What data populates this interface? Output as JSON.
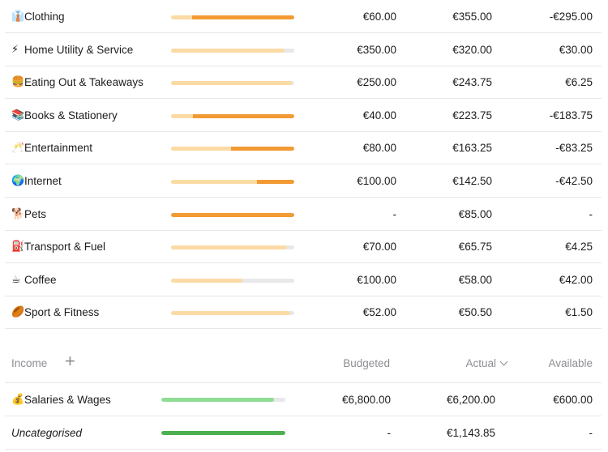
{
  "colors": {
    "budget_fill": "#fbdba5",
    "over_budget": "#f29a34",
    "track": "#e8e8ea",
    "income_partial": "#8fdd95",
    "income_full": "#4caf50"
  },
  "expenses": [
    {
      "icon": "👔",
      "icon_name": "shirt-tie-icon",
      "name": "Clothing",
      "budgeted": "€60.00",
      "actual": "€355.00",
      "available": "-€295.00",
      "spent_fraction": 1.0,
      "over_fraction": 0.83
    },
    {
      "icon": "⚡",
      "icon_name": "lightning-icon",
      "name": "Home Utility & Service",
      "budgeted": "€350.00",
      "actual": "€320.00",
      "available": "€30.00",
      "spent_fraction": 0.92,
      "over_fraction": 0
    },
    {
      "icon": "🍔",
      "icon_name": "burger-icon",
      "name": "Eating Out & Takeaways",
      "budgeted": "€250.00",
      "actual": "€243.75",
      "available": "€6.25",
      "spent_fraction": 0.98,
      "over_fraction": 0
    },
    {
      "icon": "📚",
      "icon_name": "books-icon",
      "name": "Books & Stationery",
      "budgeted": "€40.00",
      "actual": "€223.75",
      "available": "-€183.75",
      "spent_fraction": 1.0,
      "over_fraction": 0.82
    },
    {
      "icon": "🥂",
      "icon_name": "champagne-icon",
      "name": "Entertainment",
      "budgeted": "€80.00",
      "actual": "€163.25",
      "available": "-€83.25",
      "spent_fraction": 1.0,
      "over_fraction": 0.51
    },
    {
      "icon": "🌍",
      "icon_name": "globe-icon",
      "name": "Internet",
      "budgeted": "€100.00",
      "actual": "€142.50",
      "available": "-€42.50",
      "spent_fraction": 1.0,
      "over_fraction": 0.3
    },
    {
      "icon": "🐕",
      "icon_name": "dog-icon",
      "name": "Pets",
      "budgeted": "-",
      "actual": "€85.00",
      "available": "-",
      "spent_fraction": 1.0,
      "over_fraction": 1.0
    },
    {
      "icon": "⛽",
      "icon_name": "fuel-pump-icon",
      "name": "Transport & Fuel",
      "budgeted": "€70.00",
      "actual": "€65.75",
      "available": "€4.25",
      "spent_fraction": 0.94,
      "over_fraction": 0
    },
    {
      "icon": "☕",
      "icon_name": "coffee-icon",
      "name": "Coffee",
      "budgeted": "€100.00",
      "actual": "€58.00",
      "available": "€42.00",
      "spent_fraction": 0.58,
      "over_fraction": 0
    },
    {
      "icon": "🏉",
      "icon_name": "rugby-ball-icon",
      "name": "Sport & Fitness",
      "budgeted": "€52.00",
      "actual": "€50.50",
      "available": "€1.50",
      "spent_fraction": 0.97,
      "over_fraction": 0
    }
  ],
  "income_header": {
    "title": "Income",
    "add_icon": "plus-icon",
    "add_glyph": "+",
    "col_budgeted": "Budgeted",
    "col_actual": "Actual",
    "col_available": "Available"
  },
  "income": [
    {
      "icon": "💰",
      "icon_name": "money-bag-icon",
      "name": "Salaries & Wages",
      "italic": false,
      "budgeted": "€6,800.00",
      "actual": "€6,200.00",
      "available": "€600.00",
      "fraction": 0.91,
      "color": "#8fdd95"
    },
    {
      "icon": "",
      "icon_name": "",
      "name": "Uncategorised",
      "italic": true,
      "budgeted": "-",
      "actual": "€1,143.85",
      "available": "-",
      "fraction": 1.0,
      "color": "#4caf50"
    }
  ]
}
